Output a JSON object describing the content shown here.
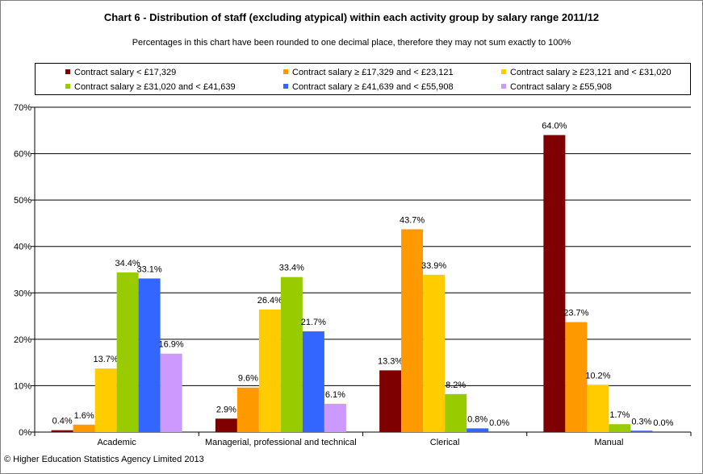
{
  "title": "Chart 6 - Distribution of staff (excluding atypical) within each activity group by salary range 2011/12",
  "subtitle": "Percentages in this chart have been rounded to one decimal place, therefore they may not sum exactly to 100%",
  "footer": "© Higher Education Statistics Agency Limited 2013",
  "chart_data": {
    "type": "bar",
    "categories": [
      "Academic",
      "Managerial, professional and technical",
      "Clerical",
      "Manual"
    ],
    "series": [
      {
        "name": "Contract salary < £17,329",
        "color": "#7f0000",
        "values": [
          0.4,
          2.9,
          13.3,
          64.0
        ],
        "labels": [
          "0.4%",
          "2.9%",
          "13.3%",
          "64.0%"
        ]
      },
      {
        "name": "Contract salary ≥ £17,329 and < £23,121",
        "color": "#ff9900",
        "values": [
          1.6,
          9.6,
          43.7,
          23.7
        ],
        "labels": [
          "1.6%",
          "9.6%",
          "43.7%",
          "23.7%"
        ]
      },
      {
        "name": "Contract salary ≥ £23,121 and < £31,020",
        "color": "#ffcc00",
        "values": [
          13.7,
          26.4,
          33.9,
          10.2
        ],
        "labels": [
          "13.7%",
          "26.4%",
          "33.9%",
          "10.2%"
        ]
      },
      {
        "name": "Contract salary ≥ £31,020 and < £41,639",
        "color": "#99cc00",
        "values": [
          34.4,
          33.4,
          8.2,
          1.7
        ],
        "labels": [
          "34.4%",
          "33.4%",
          "8.2%",
          "1.7%"
        ]
      },
      {
        "name": "Contract salary ≥ £41,639 and < £55,908",
        "color": "#3366ff",
        "values": [
          33.1,
          21.7,
          0.8,
          0.3
        ],
        "labels": [
          "33.1%",
          "21.7%",
          "0.8%",
          "0.3%"
        ]
      },
      {
        "name": "Contract salary ≥ £55,908",
        "color": "#cc99ff",
        "values": [
          16.9,
          6.1,
          0.0,
          0.0
        ],
        "labels": [
          "16.9%",
          "6.1%",
          "0.0%",
          "0.0%"
        ]
      }
    ],
    "ylim": [
      0,
      70
    ],
    "yticks": [
      "0%",
      "10%",
      "20%",
      "30%",
      "40%",
      "50%",
      "60%",
      "70%"
    ],
    "grid": true,
    "legend_position": "top"
  }
}
